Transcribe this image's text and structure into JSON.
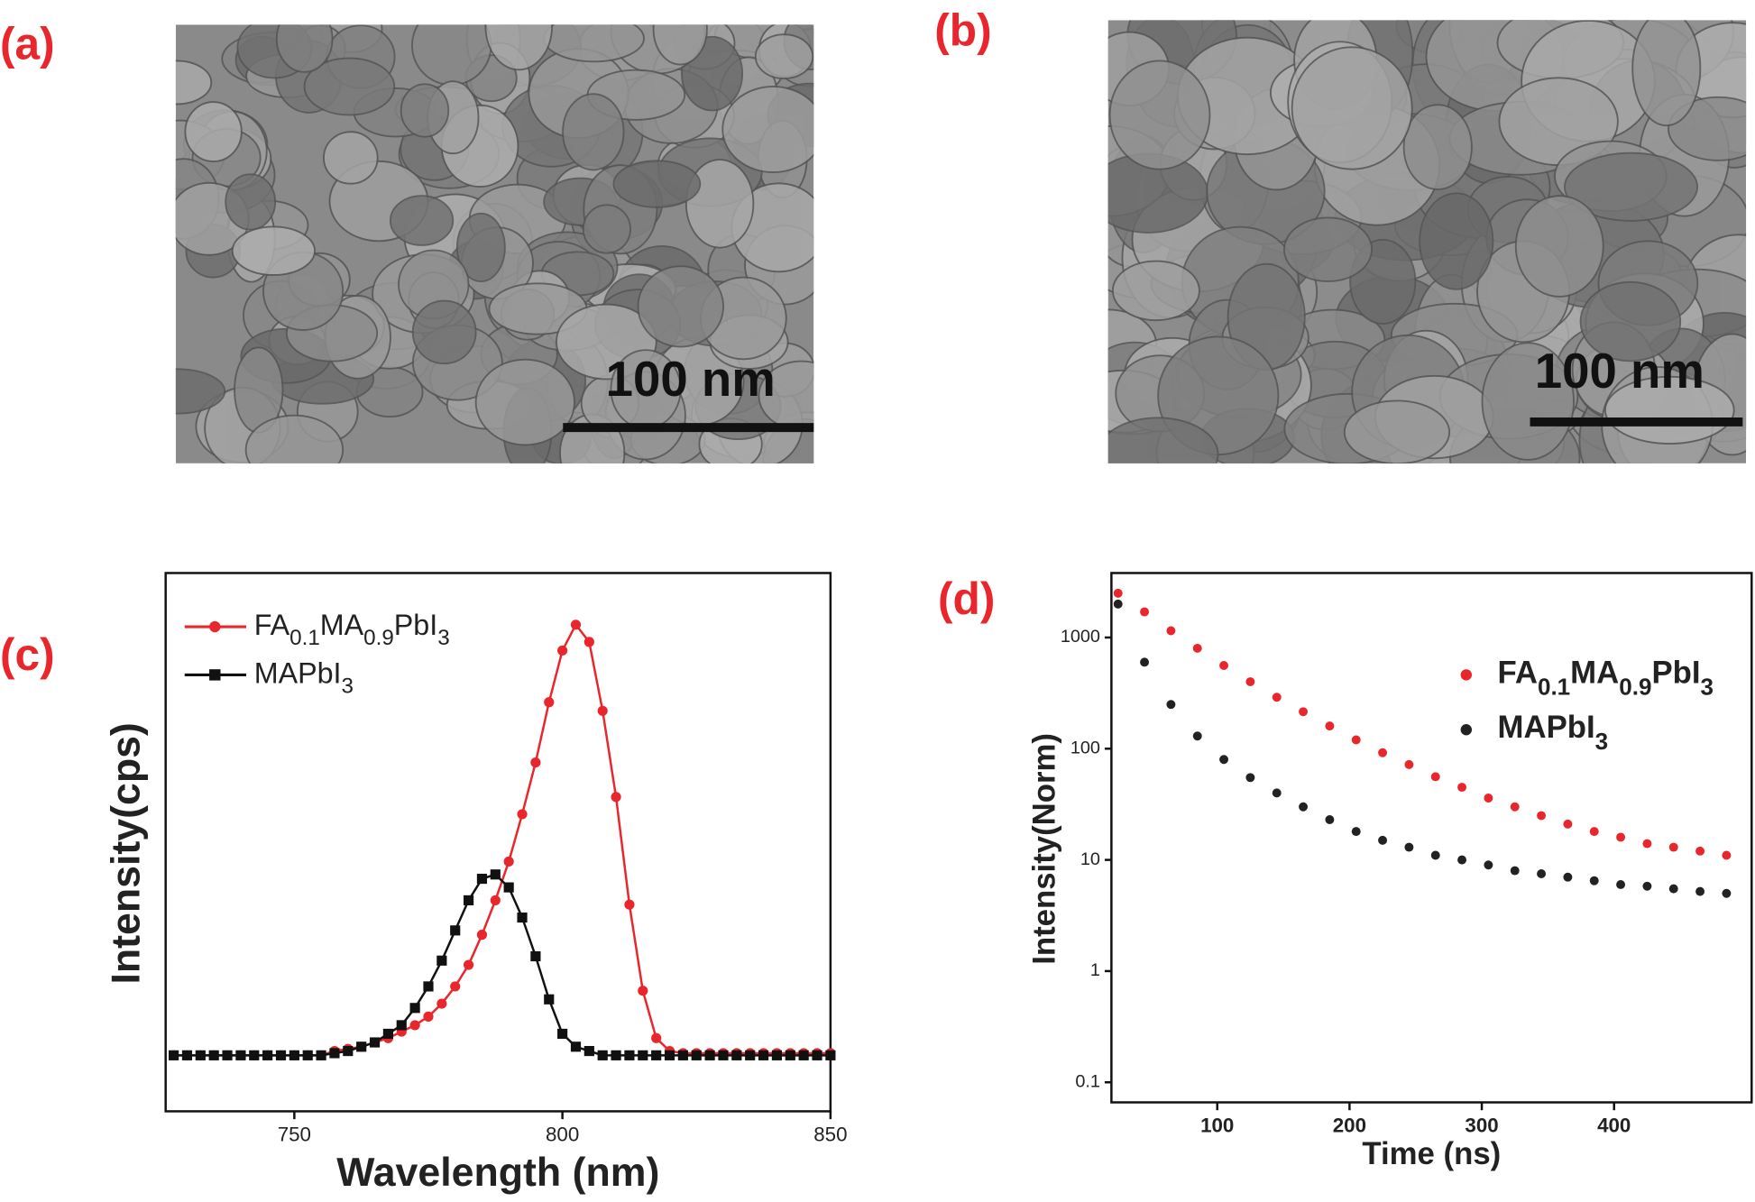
{
  "panel_labels": [
    "(a)",
    "(b)",
    "(c)",
    "(d)"
  ],
  "sem_images": [
    {
      "scale_bar": "100 nm"
    },
    {
      "scale_bar": "100 nm"
    }
  ],
  "chart_data": [
    {
      "type": "line",
      "xlabel": "Wavelength (nm)",
      "ylabel": "Intensity(cps)",
      "xlim": [
        726,
        850
      ],
      "xticks": [
        750,
        800,
        850
      ],
      "ylim": [
        -0.13,
        1.12
      ],
      "x": [
        727.5,
        730,
        732.5,
        735,
        737.5,
        740,
        742.5,
        745,
        747.5,
        750,
        752.5,
        755,
        757.5,
        760,
        762.5,
        765,
        767.5,
        770,
        772.5,
        775,
        777.5,
        780,
        782.5,
        785,
        787.5,
        790,
        792.5,
        795,
        797.5,
        800,
        802.5,
        805,
        807.5,
        810,
        812.5,
        815,
        817.5,
        820,
        822.5,
        825,
        827.5,
        830,
        832.5,
        835,
        837.5,
        840,
        842.5,
        845,
        847.5,
        850
      ],
      "series": [
        {
          "name": "FA0.1MA0.9PbI3",
          "color": "#e8262b",
          "marker": "circle",
          "values": [
            0,
            0,
            0,
            0,
            0,
            0,
            0,
            0,
            0,
            0,
            0,
            0,
            0.01,
            0.015,
            0.02,
            0.03,
            0.04,
            0.055,
            0.07,
            0.09,
            0.12,
            0.16,
            0.21,
            0.28,
            0.36,
            0.45,
            0.56,
            0.68,
            0.82,
            0.94,
            1.0,
            0.96,
            0.8,
            0.6,
            0.35,
            0.15,
            0.04,
            0.01,
            0.005,
            0.005,
            0.005,
            0.005,
            0.005,
            0.005,
            0.005,
            0.005,
            0.005,
            0.005,
            0.005,
            0.005
          ]
        },
        {
          "name": "MAPbI3",
          "color": "#111111",
          "marker": "square",
          "values": [
            0,
            0,
            0,
            0,
            0,
            0,
            0,
            0,
            0,
            0,
            0,
            0,
            0.005,
            0.01,
            0.02,
            0.03,
            0.05,
            0.07,
            0.11,
            0.16,
            0.22,
            0.29,
            0.36,
            0.41,
            0.42,
            0.39,
            0.32,
            0.23,
            0.13,
            0.05,
            0.02,
            0.01,
            0,
            0,
            0,
            0,
            0,
            0,
            0,
            0,
            0,
            0,
            0,
            0,
            0,
            0,
            0,
            0,
            0,
            0
          ]
        }
      ]
    },
    {
      "type": "scatter",
      "xlabel": "Time (ns)",
      "ylabel": "Intensity(Norm)",
      "xlim": [
        20,
        504
      ],
      "xticks": [
        100,
        200,
        300,
        400
      ],
      "ylim": [
        0.066,
        3800
      ],
      "yticks": [
        0.1,
        1,
        10,
        100,
        1000
      ],
      "yscale": "log",
      "x": [
        25,
        45,
        65,
        85,
        105,
        125,
        145,
        165,
        185,
        205,
        225,
        245,
        265,
        285,
        305,
        325,
        345,
        365,
        385,
        405,
        425,
        445,
        465,
        485
      ],
      "series": [
        {
          "name": "FA0.1MA0.9PbI3",
          "color": "#e8262b",
          "values": [
            2500,
            1700,
            1150,
            800,
            560,
            400,
            290,
            215,
            160,
            120,
            92,
            72,
            56,
            45,
            36,
            30,
            25,
            21,
            18,
            16,
            14,
            13,
            12,
            11
          ]
        },
        {
          "name": "MAPbI3",
          "color": "#222222",
          "values": [
            2000,
            600,
            250,
            130,
            80,
            55,
            40,
            30,
            23,
            18,
            15,
            13,
            11,
            10,
            9,
            8,
            7.5,
            7,
            6.5,
            6,
            5.8,
            5.5,
            5.2,
            5
          ]
        }
      ]
    }
  ]
}
